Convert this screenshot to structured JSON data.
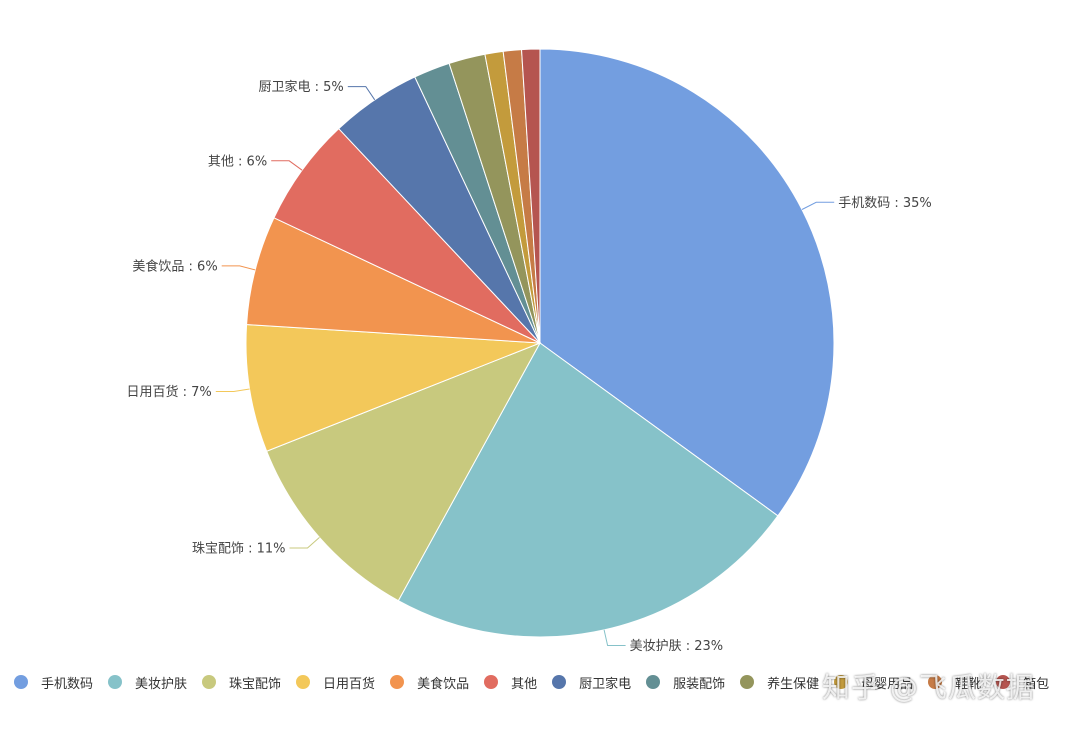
{
  "chart_data": {
    "type": "pie",
    "categories": [
      "手机数码",
      "美妆护肤",
      "珠宝配饰",
      "日用百货",
      "美食饮品",
      "其他",
      "厨卫家电",
      "服装配饰",
      "养生保健",
      "母婴用品",
      "鞋靴",
      "箱包"
    ],
    "values": [
      35,
      23,
      11,
      7,
      6,
      6,
      5,
      2,
      2,
      1,
      1,
      1
    ],
    "colors": [
      "#739ee0",
      "#86c2c9",
      "#c8c97e",
      "#f3c85a",
      "#f2944f",
      "#e16c60",
      "#5676ab",
      "#638f94",
      "#94955c",
      "#c39b3c",
      "#c67b46",
      "#b55550"
    ],
    "labels": [
      {
        "text": "手机数码 : 35%",
        "side": "right"
      },
      {
        "text": "美妆护肤 : 23%",
        "side": "right"
      },
      {
        "text": "珠宝配饰 : 11%",
        "side": "left"
      },
      {
        "text": "日用百货 : 7%",
        "side": "left"
      },
      {
        "text": "美食饮品 : 6%",
        "side": "left"
      },
      {
        "text": "其他 : 6%",
        "side": "left"
      },
      {
        "text": "厨卫家电 : 5%",
        "side": "left"
      }
    ],
    "legend": {
      "position": "bottom-left",
      "items": [
        "手机数码",
        "美妆护肤",
        "珠宝配饰",
        "日用百货",
        "美食饮品",
        "其他",
        "厨卫家电",
        "服装配饰",
        "养生保健",
        "母婴用品",
        "鞋靴",
        "箱包"
      ]
    },
    "watermark": "知乎 @飞瓜数据"
  }
}
